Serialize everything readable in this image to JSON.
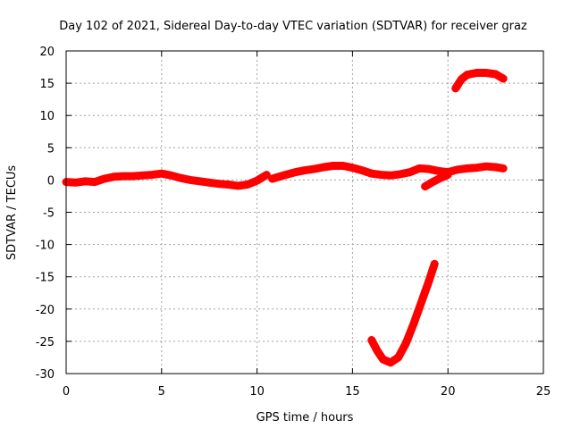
{
  "chart_data": {
    "type": "scatter",
    "title": "Day 102 of 2021, Sidereal Day-to-day VTEC variation (SDTVAR) for receiver graz",
    "xlabel": "GPS time / hours",
    "ylabel": "SDTVAR / TECUs",
    "xlim": [
      0,
      25
    ],
    "ylim": [
      -30,
      20
    ],
    "grid": true,
    "legend": "none",
    "xticks": [
      0,
      5,
      10,
      15,
      20,
      25
    ],
    "yticks": [
      -30,
      -25,
      -20,
      -15,
      -10,
      -5,
      0,
      5,
      10,
      15,
      20
    ],
    "xtick_labels": [
      "0",
      "5",
      "10",
      "15",
      "20",
      "25"
    ],
    "ytick_labels": [
      "-30",
      "-25",
      "-20",
      "-15",
      "-10",
      "-5",
      "0",
      "5",
      "10",
      "15",
      "20"
    ],
    "series_color": "#ff0000",
    "series": [
      {
        "name": "main",
        "x": [
          0.0,
          0.5,
          1.0,
          1.5,
          2.0,
          2.5,
          3.0,
          3.5,
          4.0,
          4.5,
          5.0,
          5.5,
          6.0,
          6.5,
          7.0,
          7.5,
          8.0,
          8.5,
          9.0,
          9.5,
          10.0,
          10.5
        ],
        "y": [
          -0.3,
          -0.4,
          -0.2,
          -0.3,
          0.2,
          0.5,
          0.6,
          0.6,
          0.7,
          0.8,
          1.0,
          0.7,
          0.3,
          0.0,
          -0.2,
          -0.4,
          -0.6,
          -0.7,
          -0.9,
          -0.7,
          -0.1,
          0.8
        ]
      },
      {
        "name": "main-2",
        "x": [
          10.8,
          11.5,
          12.0,
          12.5,
          13.0,
          13.5,
          14.0,
          14.5,
          15.0,
          15.5,
          16.0,
          16.5,
          17.0,
          17.5,
          18.0,
          18.5,
          19.0,
          19.5,
          20.0,
          20.5,
          21.0,
          21.5,
          22.0,
          22.5,
          22.9
        ],
        "y": [
          0.2,
          0.8,
          1.2,
          1.5,
          1.7,
          2.0,
          2.2,
          2.2,
          1.9,
          1.5,
          1.0,
          0.8,
          0.7,
          0.9,
          1.2,
          1.8,
          1.7,
          1.4,
          1.2,
          1.6,
          1.8,
          1.9,
          2.1,
          2.0,
          1.8
        ]
      },
      {
        "name": "branch",
        "x": [
          18.8,
          19.2,
          19.6,
          20.0
        ],
        "y": [
          -1.0,
          -0.3,
          0.3,
          0.8
        ]
      },
      {
        "name": "high-arc",
        "x": [
          20.4,
          20.7,
          21.0,
          21.5,
          22.0,
          22.5,
          22.9
        ],
        "y": [
          14.2,
          15.6,
          16.3,
          16.6,
          16.6,
          16.4,
          15.7
        ]
      },
      {
        "name": "low-arc",
        "x": [
          16.0,
          16.3,
          16.6,
          17.0,
          17.4,
          17.8,
          18.2,
          18.6,
          19.0,
          19.3
        ],
        "y": [
          -24.8,
          -26.5,
          -27.8,
          -28.3,
          -27.5,
          -25.3,
          -22.3,
          -19.0,
          -15.7,
          -13.0
        ]
      }
    ]
  }
}
